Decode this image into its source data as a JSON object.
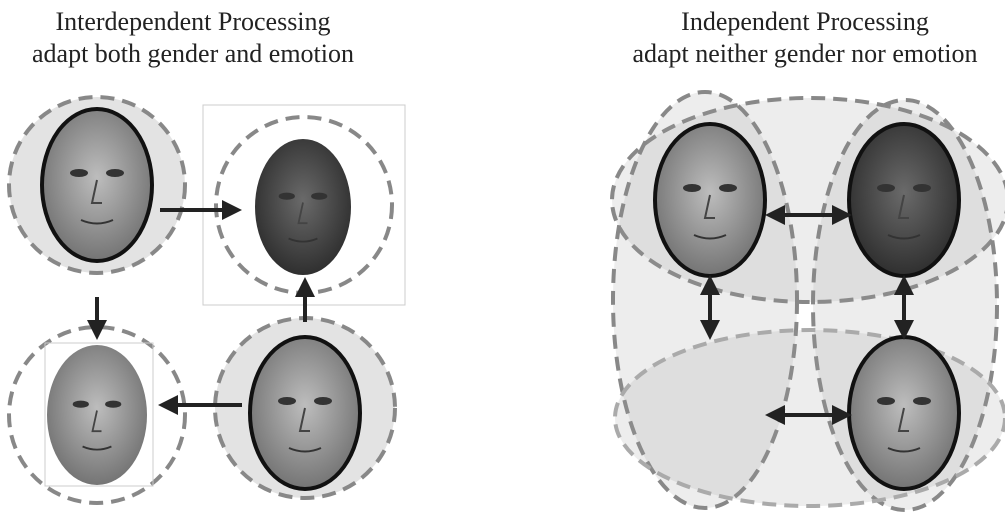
{
  "panels": [
    {
      "title": "Interdependent Processing",
      "subtitle": "adapt both gender and emotion"
    },
    {
      "title": "Independent Processing",
      "subtitle": "adapt neither gender nor emotion"
    }
  ]
}
